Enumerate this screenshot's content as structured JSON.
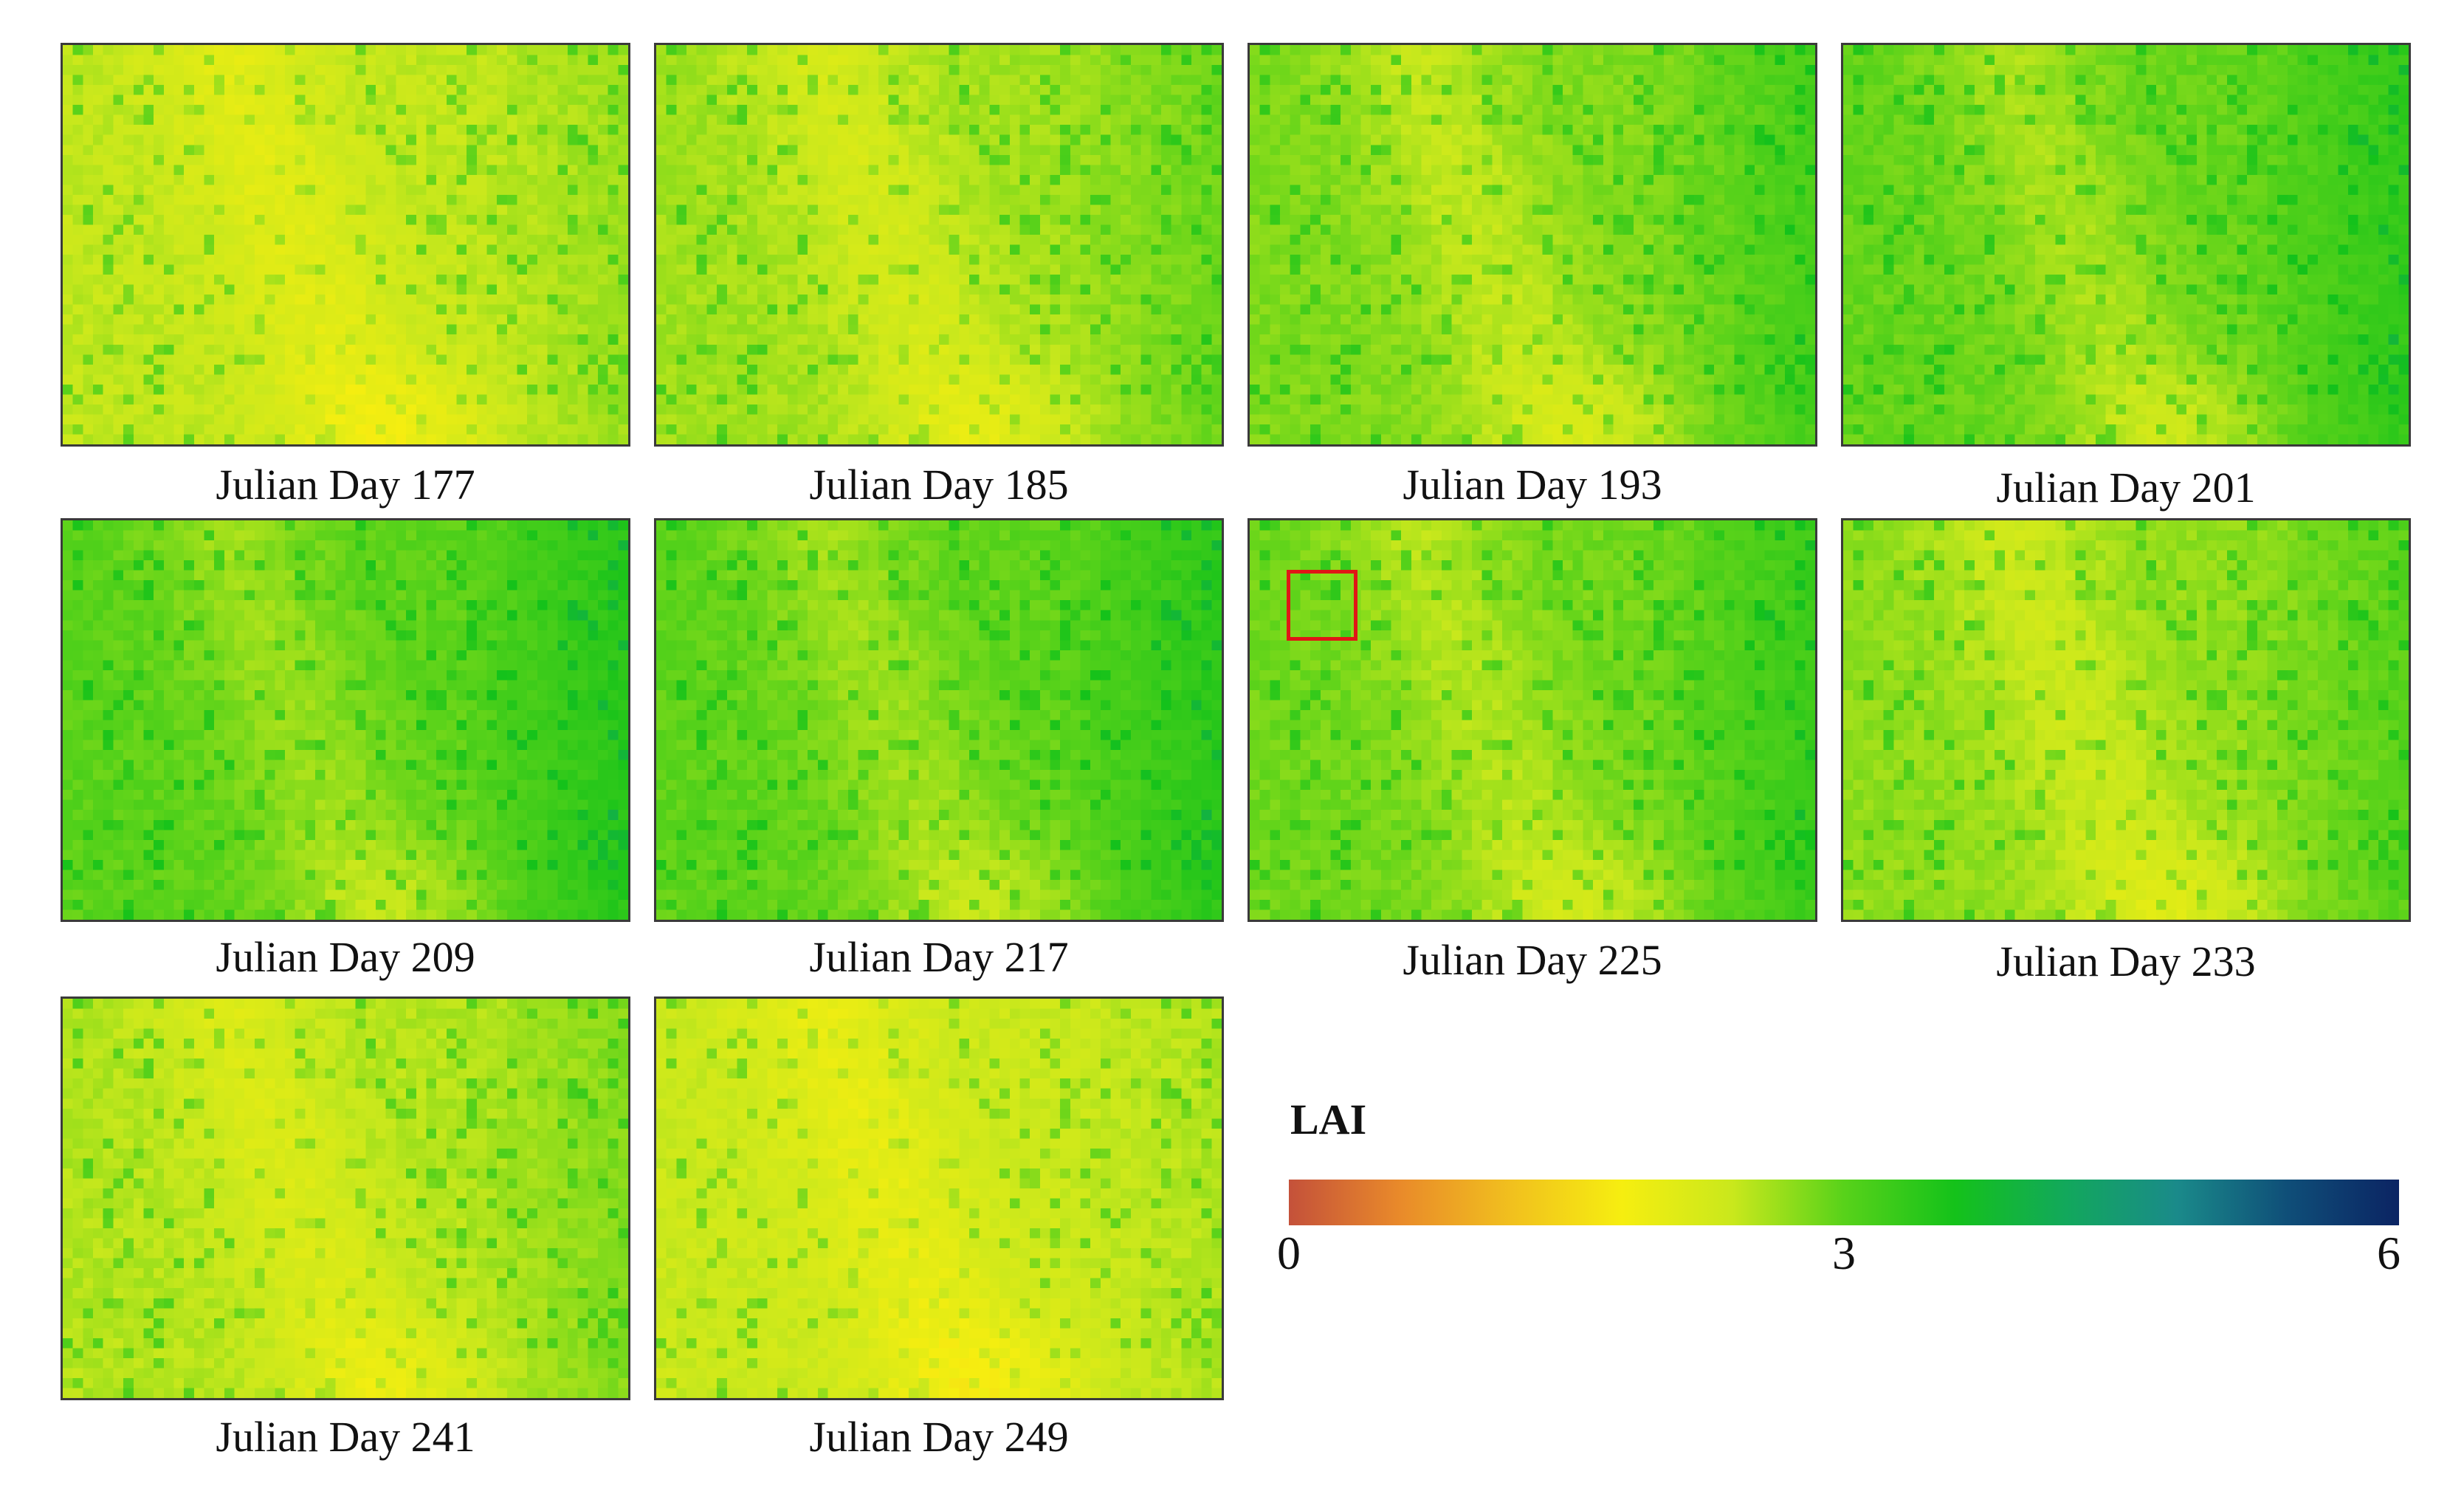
{
  "panels": [
    {
      "label": "Julian Day 177",
      "day": 177
    },
    {
      "label": "Julian Day 185",
      "day": 185
    },
    {
      "label": "Julian Day 193",
      "day": 193
    },
    {
      "label": "Julian Day 201",
      "day": 201
    },
    {
      "label": "Julian Day 209",
      "day": 209
    },
    {
      "label": "Julian Day 217",
      "day": 217
    },
    {
      "label": "Julian Day 225",
      "day": 225
    },
    {
      "label": "Julian Day 233",
      "day": 233
    },
    {
      "label": "Julian Day 241",
      "day": 241
    },
    {
      "label": "Julian Day 249",
      "day": 249
    }
  ],
  "legend": {
    "title": "LAI",
    "min": 0,
    "mid": 3,
    "max": 6,
    "tick_min": "0",
    "tick_mid": "3",
    "tick_max": "6",
    "colors": [
      "#c4513a",
      "#e98a2a",
      "#f1c01e",
      "#f6ee10",
      "#c9e81c",
      "#58d21a",
      "#14c21a",
      "#12a85c",
      "#1a8a8a",
      "#0f4e78",
      "#0b2463"
    ]
  }
}
